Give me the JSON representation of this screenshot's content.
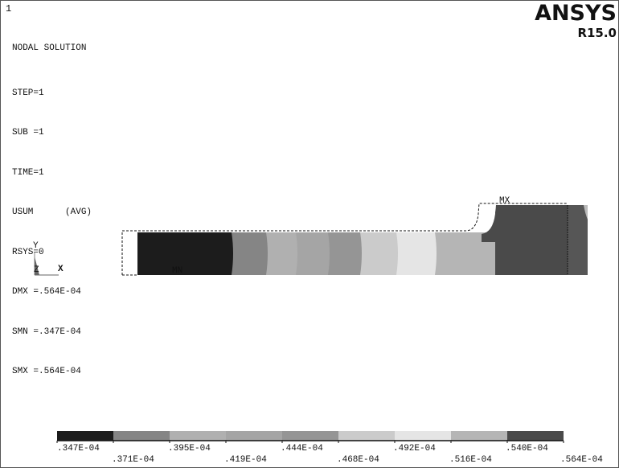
{
  "window_number": "1",
  "logo": {
    "name": "ANSYS",
    "version": "R15.0"
  },
  "info": {
    "title": "NODAL SOLUTION",
    "lines": [
      "STEP=1",
      "SUB =1",
      "TIME=1",
      "USUM      (AVG)",
      "RSYS=0",
      "DMX =.564E-04",
      "SMN =.347E-04",
      "SMX =.564E-04"
    ]
  },
  "markers": {
    "min": "MN",
    "max": "MX"
  },
  "triad": {
    "x": "X",
    "y": "Y",
    "z": "Z"
  },
  "contour_colors": [
    "#1c1c1c",
    "#858585",
    "#b0b0b0",
    "#a5a5a5",
    "#959595",
    "#cbcbcb",
    "#e5e5e5",
    "#b5b5b5",
    "#4a4a4a"
  ],
  "legend": {
    "labels": [
      ".347E-04",
      ".371E-04",
      ".395E-04",
      ".419E-04",
      ".444E-04",
      ".468E-04",
      ".492E-04",
      ".516E-04",
      ".540E-04",
      ".564E-04"
    ]
  }
}
